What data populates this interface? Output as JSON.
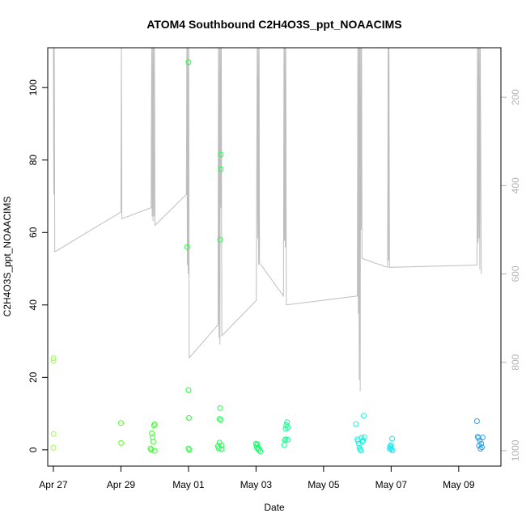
{
  "chart_data": {
    "type": "scatter",
    "title": "ATOM4 Southbound C2H4O3S_ppt_NOAACIMS",
    "xlabel": "Date",
    "ylabel": "C2H4O3S_ppt_NOAACIMS",
    "xlim": [
      "2018-04-26 20:00",
      "2018-05-10 06:00"
    ],
    "ylim": [
      -4.5,
      111
    ],
    "x_ticks": [
      "Apr 27",
      "Apr 29",
      "May 01",
      "May 03",
      "May 05",
      "May 07",
      "May 09"
    ],
    "y_ticks": [
      0,
      20,
      40,
      60,
      80,
      100
    ],
    "right_axis": {
      "label": "",
      "reversed": true,
      "ticks": [
        200,
        400,
        600,
        800,
        1000
      ],
      "ylim": [
        1035,
        88
      ],
      "color": "#b4b4b4"
    },
    "grid": false,
    "legend": "none",
    "series": [
      {
        "marker": "open-circle",
        "color_scale": "rainbow by date",
        "points": [
          {
            "x": "2018-04-27 00:05",
            "y": 25.3,
            "color": "#9cff4a"
          },
          {
            "x": "2018-04-27 00:05",
            "y": 24.6,
            "color": "#9cff4a"
          },
          {
            "x": "2018-04-27 00:10",
            "y": 4.4,
            "color": "#9cff4a"
          },
          {
            "x": "2018-04-27 00:00",
            "y": 0.6,
            "color": "#9cff4a"
          },
          {
            "x": "2018-04-29 00:00",
            "y": 7.4,
            "color": "#66ff33"
          },
          {
            "x": "2018-04-29 00:05",
            "y": 7.4,
            "color": "#66ff33"
          },
          {
            "x": "2018-04-29 00:05",
            "y": 1.9,
            "color": "#66ff33"
          },
          {
            "x": "2018-04-29 21:00",
            "y": 0.4,
            "color": "#3cff2c"
          },
          {
            "x": "2018-04-29 21:30",
            "y": 0.0,
            "color": "#3cff2c"
          },
          {
            "x": "2018-04-29 22:00",
            "y": 4.6,
            "color": "#3cff2c"
          },
          {
            "x": "2018-04-29 22:30",
            "y": 3.5,
            "color": "#3cff2c"
          },
          {
            "x": "2018-04-29 23:00",
            "y": 2.2,
            "color": "#3cff2c"
          },
          {
            "x": "2018-04-29 23:30",
            "y": 6.7,
            "color": "#3cff2c"
          },
          {
            "x": "2018-04-30 00:00",
            "y": 7.1,
            "color": "#3cff2c"
          },
          {
            "x": "2018-04-30 00:00",
            "y": -0.3,
            "color": "#3cff2c"
          },
          {
            "x": "2018-04-30 23:00",
            "y": 56.0,
            "color": "#22ff3a"
          },
          {
            "x": "2018-05-01 00:00",
            "y": 107.0,
            "color": "#22ff3a"
          },
          {
            "x": "2018-05-01 00:00",
            "y": 16.5,
            "color": "#22ff3a"
          },
          {
            "x": "2018-05-01 00:20",
            "y": 8.8,
            "color": "#22ff3a"
          },
          {
            "x": "2018-05-01 00:00",
            "y": 0.4,
            "color": "#22ff3a"
          },
          {
            "x": "2018-05-01 00:40",
            "y": 0.0,
            "color": "#22ff3a"
          },
          {
            "x": "2018-05-01 21:00",
            "y": 1.0,
            "color": "#1cff4d"
          },
          {
            "x": "2018-05-01 21:30",
            "y": 0.4,
            "color": "#1cff4d"
          },
          {
            "x": "2018-05-01 22:00",
            "y": 2.0,
            "color": "#1cff4d"
          },
          {
            "x": "2018-05-01 22:00",
            "y": 8.5,
            "color": "#1cff4d"
          },
          {
            "x": "2018-05-01 22:30",
            "y": 58.0,
            "color": "#1cff4d"
          },
          {
            "x": "2018-05-01 22:30",
            "y": 11.5,
            "color": "#1cff4d"
          },
          {
            "x": "2018-05-01 23:00",
            "y": 81.5,
            "color": "#1cff4d"
          },
          {
            "x": "2018-05-01 23:00",
            "y": 77.5,
            "color": "#1cff4d"
          },
          {
            "x": "2018-05-01 23:00",
            "y": 8.2,
            "color": "#1cff4d"
          },
          {
            "x": "2018-05-01 23:30",
            "y": 1.2,
            "color": "#1cff4d"
          },
          {
            "x": "2018-05-01 23:30",
            "y": 0.2,
            "color": "#1cff4d"
          },
          {
            "x": "2018-05-03 00:00",
            "y": 1.7,
            "color": "#12ff6a"
          },
          {
            "x": "2018-05-03 00:20",
            "y": 1.2,
            "color": "#12ff6a"
          },
          {
            "x": "2018-05-03 00:40",
            "y": 0.6,
            "color": "#12ff6a"
          },
          {
            "x": "2018-05-03 01:00",
            "y": 1.6,
            "color": "#12ff6a"
          },
          {
            "x": "2018-05-03 01:30",
            "y": 0.1,
            "color": "#12ff6a"
          },
          {
            "x": "2018-05-03 02:00",
            "y": 0.3,
            "color": "#12ff6a"
          },
          {
            "x": "2018-05-03 03:00",
            "y": -0.4,
            "color": "#12ff6a"
          },
          {
            "x": "2018-05-03 20:00",
            "y": 1.3,
            "color": "#10ff8c"
          },
          {
            "x": "2018-05-03 20:30",
            "y": 2.6,
            "color": "#10ff8c"
          },
          {
            "x": "2018-05-03 21:00",
            "y": 2.9,
            "color": "#10ff8c"
          },
          {
            "x": "2018-05-03 21:00",
            "y": 5.8,
            "color": "#10ff8c"
          },
          {
            "x": "2018-05-03 21:30",
            "y": 6.8,
            "color": "#10ff8c"
          },
          {
            "x": "2018-05-03 22:00",
            "y": 7.6,
            "color": "#10ff8c"
          },
          {
            "x": "2018-05-03 22:30",
            "y": 6.2,
            "color": "#10ff8c"
          },
          {
            "x": "2018-05-03 22:30",
            "y": 2.8,
            "color": "#10ff8c"
          },
          {
            "x": "2018-05-05 23:00",
            "y": 7.1,
            "color": "#16f2e0"
          },
          {
            "x": "2018-05-06 00:00",
            "y": 2.9,
            "color": "#16f2e0"
          },
          {
            "x": "2018-05-06 00:30",
            "y": 2.5,
            "color": "#16f2e0"
          },
          {
            "x": "2018-05-06 01:00",
            "y": 1.7,
            "color": "#16f2e0"
          },
          {
            "x": "2018-05-06 01:30",
            "y": 0.6,
            "color": "#16f2e0"
          },
          {
            "x": "2018-05-06 02:00",
            "y": 0.1,
            "color": "#16f2e0"
          },
          {
            "x": "2018-05-06 02:30",
            "y": -0.2,
            "color": "#16f2e0"
          },
          {
            "x": "2018-05-06 03:00",
            "y": 3.3,
            "color": "#16f2e0"
          },
          {
            "x": "2018-05-06 03:30",
            "y": 2.3,
            "color": "#16f2e0"
          },
          {
            "x": "2018-05-06 04:00",
            "y": 2.6,
            "color": "#16f2e0"
          },
          {
            "x": "2018-05-06 04:30",
            "y": 9.4,
            "color": "#16f2e0"
          },
          {
            "x": "2018-05-06 05:00",
            "y": 3.5,
            "color": "#16f2e0"
          },
          {
            "x": "2018-05-06 23:00",
            "y": 0.3,
            "color": "#19e8f0"
          },
          {
            "x": "2018-05-06 23:20",
            "y": 1.0,
            "color": "#19e8f0"
          },
          {
            "x": "2018-05-06 23:40",
            "y": 0.6,
            "color": "#19e8f0"
          },
          {
            "x": "2018-05-07 00:00",
            "y": 1.3,
            "color": "#19e8f0"
          },
          {
            "x": "2018-05-07 00:20",
            "y": 0.2,
            "color": "#19e8f0"
          },
          {
            "x": "2018-05-07 00:40",
            "y": 3.1,
            "color": "#19e8f0"
          },
          {
            "x": "2018-05-07 01:00",
            "y": -0.2,
            "color": "#19e8f0"
          },
          {
            "x": "2018-05-09 13:00",
            "y": 7.9,
            "color": "#2b9ee8"
          },
          {
            "x": "2018-05-09 13:30",
            "y": 3.6,
            "color": "#2b9ee8"
          },
          {
            "x": "2018-05-09 14:00",
            "y": 3.3,
            "color": "#2b9ee8"
          },
          {
            "x": "2018-05-09 14:30",
            "y": 1.1,
            "color": "#2b9ee8"
          },
          {
            "x": "2018-05-09 15:00",
            "y": 2.6,
            "color": "#2b9ee8"
          },
          {
            "x": "2018-05-09 15:30",
            "y": 0.3,
            "color": "#2b9ee8"
          },
          {
            "x": "2018-05-09 16:00",
            "y": 1.7,
            "color": "#2b9ee8"
          },
          {
            "x": "2018-05-09 16:30",
            "y": 0.7,
            "color": "#2b9ee8"
          },
          {
            "x": "2018-05-09 17:00",
            "y": 3.4,
            "color": "#2b9ee8"
          }
        ]
      },
      {
        "type": "line",
        "axis": "right",
        "color": "#bebebe",
        "points": [
          [
            "2018-04-27 00:00",
            88
          ],
          [
            "2018-04-27 00:20",
            420
          ],
          [
            "2018-04-27 00:40",
            88
          ],
          [
            "2018-04-27 01:00",
            550
          ],
          [
            "2018-04-29 00:00",
            460
          ],
          [
            "2018-04-29 00:20",
            88
          ],
          [
            "2018-04-29 00:40",
            475
          ],
          [
            "2018-04-29 21:30",
            450
          ],
          [
            "2018-04-29 21:50",
            88
          ],
          [
            "2018-04-29 22:10",
            470
          ],
          [
            "2018-04-29 22:30",
            88
          ],
          [
            "2018-04-29 22:50",
            480
          ],
          [
            "2018-04-29 23:10",
            88
          ],
          [
            "2018-04-29 23:30",
            470
          ],
          [
            "2018-04-29 23:50",
            88
          ],
          [
            "2018-04-30 00:10",
            490
          ],
          [
            "2018-04-30 22:30",
            420
          ],
          [
            "2018-04-30 22:50",
            88
          ],
          [
            "2018-04-30 23:10",
            580
          ],
          [
            "2018-04-30 23:30",
            88
          ],
          [
            "2018-04-30 23:50",
            600
          ],
          [
            "2018-05-01 00:10",
            88
          ],
          [
            "2018-05-01 00:30",
            790
          ],
          [
            "2018-05-01 21:00",
            715
          ],
          [
            "2018-05-01 21:20",
            88
          ],
          [
            "2018-05-01 21:40",
            745
          ],
          [
            "2018-05-01 22:00",
            88
          ],
          [
            "2018-05-01 22:20",
            760
          ],
          [
            "2018-05-01 22:40",
            88
          ],
          [
            "2018-05-01 23:00",
            450
          ],
          [
            "2018-05-01 23:20",
            88
          ],
          [
            "2018-05-01 23:40",
            740
          ],
          [
            "2018-05-03 00:10",
            660
          ],
          [
            "2018-05-03 00:30",
            360
          ],
          [
            "2018-05-03 00:50",
            88
          ],
          [
            "2018-05-03 01:10",
            520
          ],
          [
            "2018-05-03 01:30",
            88
          ],
          [
            "2018-05-03 01:50",
            580
          ],
          [
            "2018-05-03 02:10",
            88
          ],
          [
            "2018-05-03 02:30",
            575
          ],
          [
            "2018-05-03 19:30",
            650
          ],
          [
            "2018-05-03 19:50",
            88
          ],
          [
            "2018-05-03 20:10",
            525
          ],
          [
            "2018-05-03 20:30",
            88
          ],
          [
            "2018-05-03 20:50",
            540
          ],
          [
            "2018-05-03 21:10",
            88
          ],
          [
            "2018-05-03 21:30",
            670
          ],
          [
            "2018-05-06 00:00",
            650
          ],
          [
            "2018-05-06 00:20",
            88
          ],
          [
            "2018-05-06 00:40",
            690
          ],
          [
            "2018-05-06 01:00",
            88
          ],
          [
            "2018-05-06 01:20",
            840
          ],
          [
            "2018-05-06 01:40",
            88
          ],
          [
            "2018-05-06 02:00",
            865
          ],
          [
            "2018-05-06 02:20",
            88
          ],
          [
            "2018-05-06 02:40",
            500
          ],
          [
            "2018-05-06 03:00",
            88
          ],
          [
            "2018-05-06 03:20",
            565
          ],
          [
            "2018-05-06 21:30",
            585
          ],
          [
            "2018-05-06 21:50",
            88
          ],
          [
            "2018-05-06 22:10",
            570
          ],
          [
            "2018-05-06 22:30",
            88
          ],
          [
            "2018-05-06 22:50",
            585
          ],
          [
            "2018-05-09 13:00",
            580
          ],
          [
            "2018-05-09 13:20",
            88
          ],
          [
            "2018-05-09 13:40",
            530
          ],
          [
            "2018-05-09 14:00",
            88
          ],
          [
            "2018-05-09 14:20",
            520
          ],
          [
            "2018-05-09 14:40",
            88
          ],
          [
            "2018-05-09 15:00",
            590
          ],
          [
            "2018-05-09 15:20",
            88
          ],
          [
            "2018-05-09 16:00",
            600
          ]
        ]
      }
    ]
  }
}
